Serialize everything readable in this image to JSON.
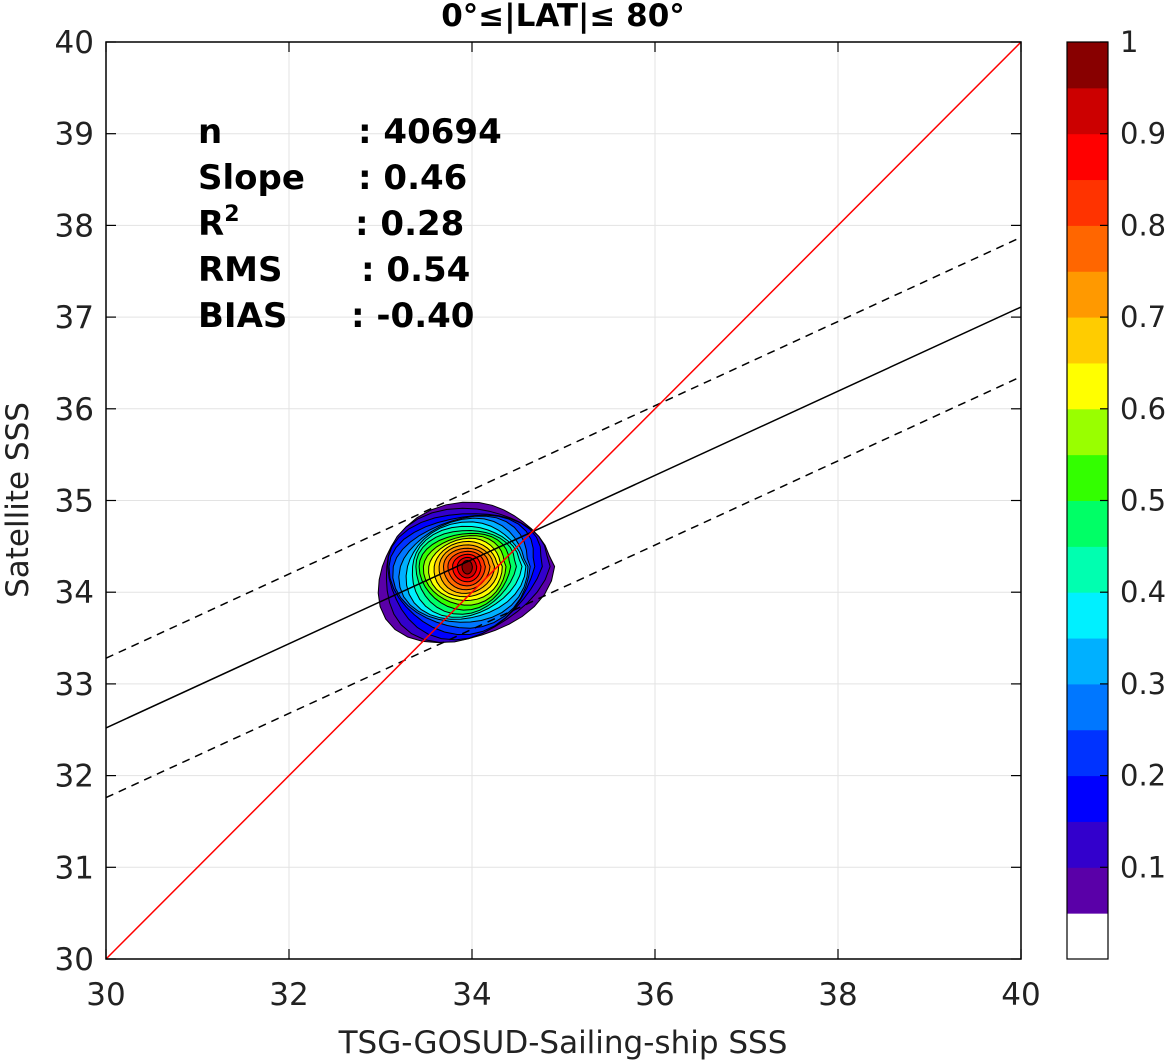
{
  "chart_data": {
    "type": "scatter",
    "title": "0°≤|LAT|≤ 80°",
    "xlabel": "TSG-GOSUD-Sailing-ship SSS",
    "ylabel": "Satellite SSS",
    "xlim": [
      30,
      40
    ],
    "ylim": [
      30,
      40
    ],
    "xticks": [
      "30",
      "32",
      "34",
      "36",
      "38",
      "40"
    ],
    "yticks": [
      "30",
      "31",
      "32",
      "33",
      "34",
      "35",
      "36",
      "37",
      "38",
      "39",
      "40"
    ],
    "grid": true,
    "stats": [
      {
        "label": "n",
        "sep": ":",
        "value": "40694"
      },
      {
        "label": "Slope",
        "sep": ":",
        "value": "0.46"
      },
      {
        "label": "R",
        "sup": "2",
        "sep": ":",
        "value": "0.28"
      },
      {
        "label": "RMS",
        "sep": ":",
        "value": "0.54"
      },
      {
        "label": "BIAS",
        "sep": ":",
        "value": "-0.40"
      }
    ],
    "lines": {
      "identity": {
        "color": "#ff0000",
        "x": [
          30,
          40
        ],
        "y": [
          30,
          40
        ]
      },
      "regression": {
        "color": "#000000",
        "style": "solid",
        "x": [
          30,
          40
        ],
        "y": [
          32.52,
          37.11
        ]
      },
      "upper_band": {
        "color": "#000000",
        "style": "dashed",
        "x": [
          30,
          40
        ],
        "y": [
          33.28,
          37.87
        ]
      },
      "lower_band": {
        "color": "#000000",
        "style": "dashed",
        "x": [
          30,
          40
        ],
        "y": [
          31.76,
          36.35
        ]
      }
    },
    "density_center": {
      "x": 33.95,
      "y": 34.28
    },
    "density_levels": [
      0.1,
      0.2,
      0.3,
      0.4,
      0.5,
      0.6,
      0.7,
      0.8,
      0.9,
      1.0
    ],
    "colorbar": {
      "range": [
        0,
        1
      ],
      "ticks": [
        "0.1",
        "0.2",
        "0.3",
        "0.4",
        "0.5",
        "0.6",
        "0.7",
        "0.8",
        "0.9",
        "1"
      ],
      "colors": [
        "#ffffff",
        "#5a00a8",
        "#3300cc",
        "#0000ff",
        "#0033ff",
        "#0077ff",
        "#00b0ff",
        "#00f0ff",
        "#00ffb0",
        "#00ff66",
        "#33ff00",
        "#99ff00",
        "#ffff00",
        "#ffcc00",
        "#ff9900",
        "#ff6600",
        "#ff3300",
        "#ff0000",
        "#cc0000",
        "#880000"
      ]
    }
  }
}
